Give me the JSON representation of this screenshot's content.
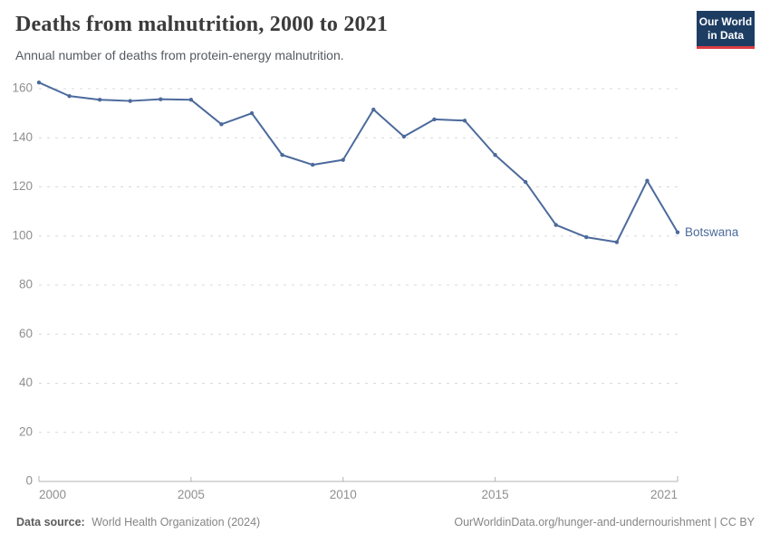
{
  "header": {
    "title": "Deaths from malnutrition, 2000 to 2021",
    "subtitle": "Annual number of deaths from protein-energy malnutrition.",
    "logo": {
      "line1": "Our World",
      "line2": "in Data"
    }
  },
  "chart_data": {
    "type": "line",
    "title": "Deaths from malnutrition, 2000 to 2021",
    "subtitle": "Annual number of deaths from protein-energy malnutrition.",
    "x": [
      2000,
      2001,
      2002,
      2003,
      2004,
      2005,
      2006,
      2007,
      2008,
      2009,
      2010,
      2011,
      2012,
      2013,
      2014,
      2015,
      2016,
      2017,
      2018,
      2019,
      2020,
      2021
    ],
    "series": [
      {
        "name": "Botswana",
        "color": "#4c6a9c",
        "values": [
          162.5,
          157,
          155.5,
          155,
          155.7,
          155.5,
          145.5,
          150,
          133,
          129,
          131,
          151.5,
          140.5,
          147.5,
          147,
          133,
          122,
          104.5,
          99.5,
          97.5,
          122.5,
          101.5
        ]
      }
    ],
    "xlabel": "",
    "ylabel": "",
    "xlim": [
      2000,
      2021
    ],
    "ylim": [
      0,
      160
    ],
    "yticks": [
      0,
      20,
      40,
      60,
      80,
      100,
      120,
      140,
      160
    ],
    "xticks": [
      2000,
      2005,
      2010,
      2015,
      2021
    ],
    "grid": "horizontal-dashed",
    "legend_position": "end-of-line-label"
  },
  "footer": {
    "source_label": "Data source:",
    "source_value": "World Health Organization (2024)",
    "link": "OurWorldinData.org/hunger-and-undernourishment | CC BY"
  },
  "colors": {
    "line": "#4c6a9c",
    "grid": "#d8d8d8",
    "axis": "#b3b3b3",
    "tick_text": "#8f8f8f",
    "logo_bg": "#1d3d63",
    "logo_bar": "#dc3e43"
  }
}
